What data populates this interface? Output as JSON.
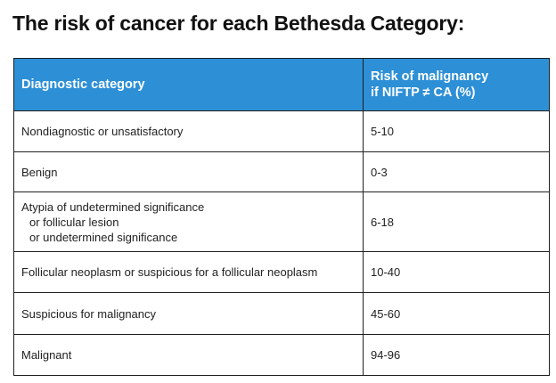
{
  "title": "The risk of cancer for each Bethesda Category:",
  "table": {
    "headers": {
      "category": "Diagnostic category",
      "risk_line1": "Risk of malignancy",
      "risk_line2": "if NIFTP ≠ CA (%)"
    },
    "rows": [
      {
        "category": "Nondiagnostic or unsatisfactory",
        "risk": "5-10"
      },
      {
        "category": "Benign",
        "risk": "0-3"
      },
      {
        "category_lines": [
          "Atypia of undetermined significance",
          "or follicular lesion",
          "or undetermined significance"
        ],
        "risk": "6-18"
      },
      {
        "category": "Follicular neoplasm or suspicious for a follicular neoplasm",
        "risk": "10-40"
      },
      {
        "category": "Suspicious for malignancy",
        "risk": "45-60"
      },
      {
        "category": "Malignant",
        "risk": "94-96"
      }
    ],
    "colors": {
      "header_background": "#2d8fd6",
      "header_text": "#ffffff",
      "border": "#1f1f1f"
    }
  }
}
